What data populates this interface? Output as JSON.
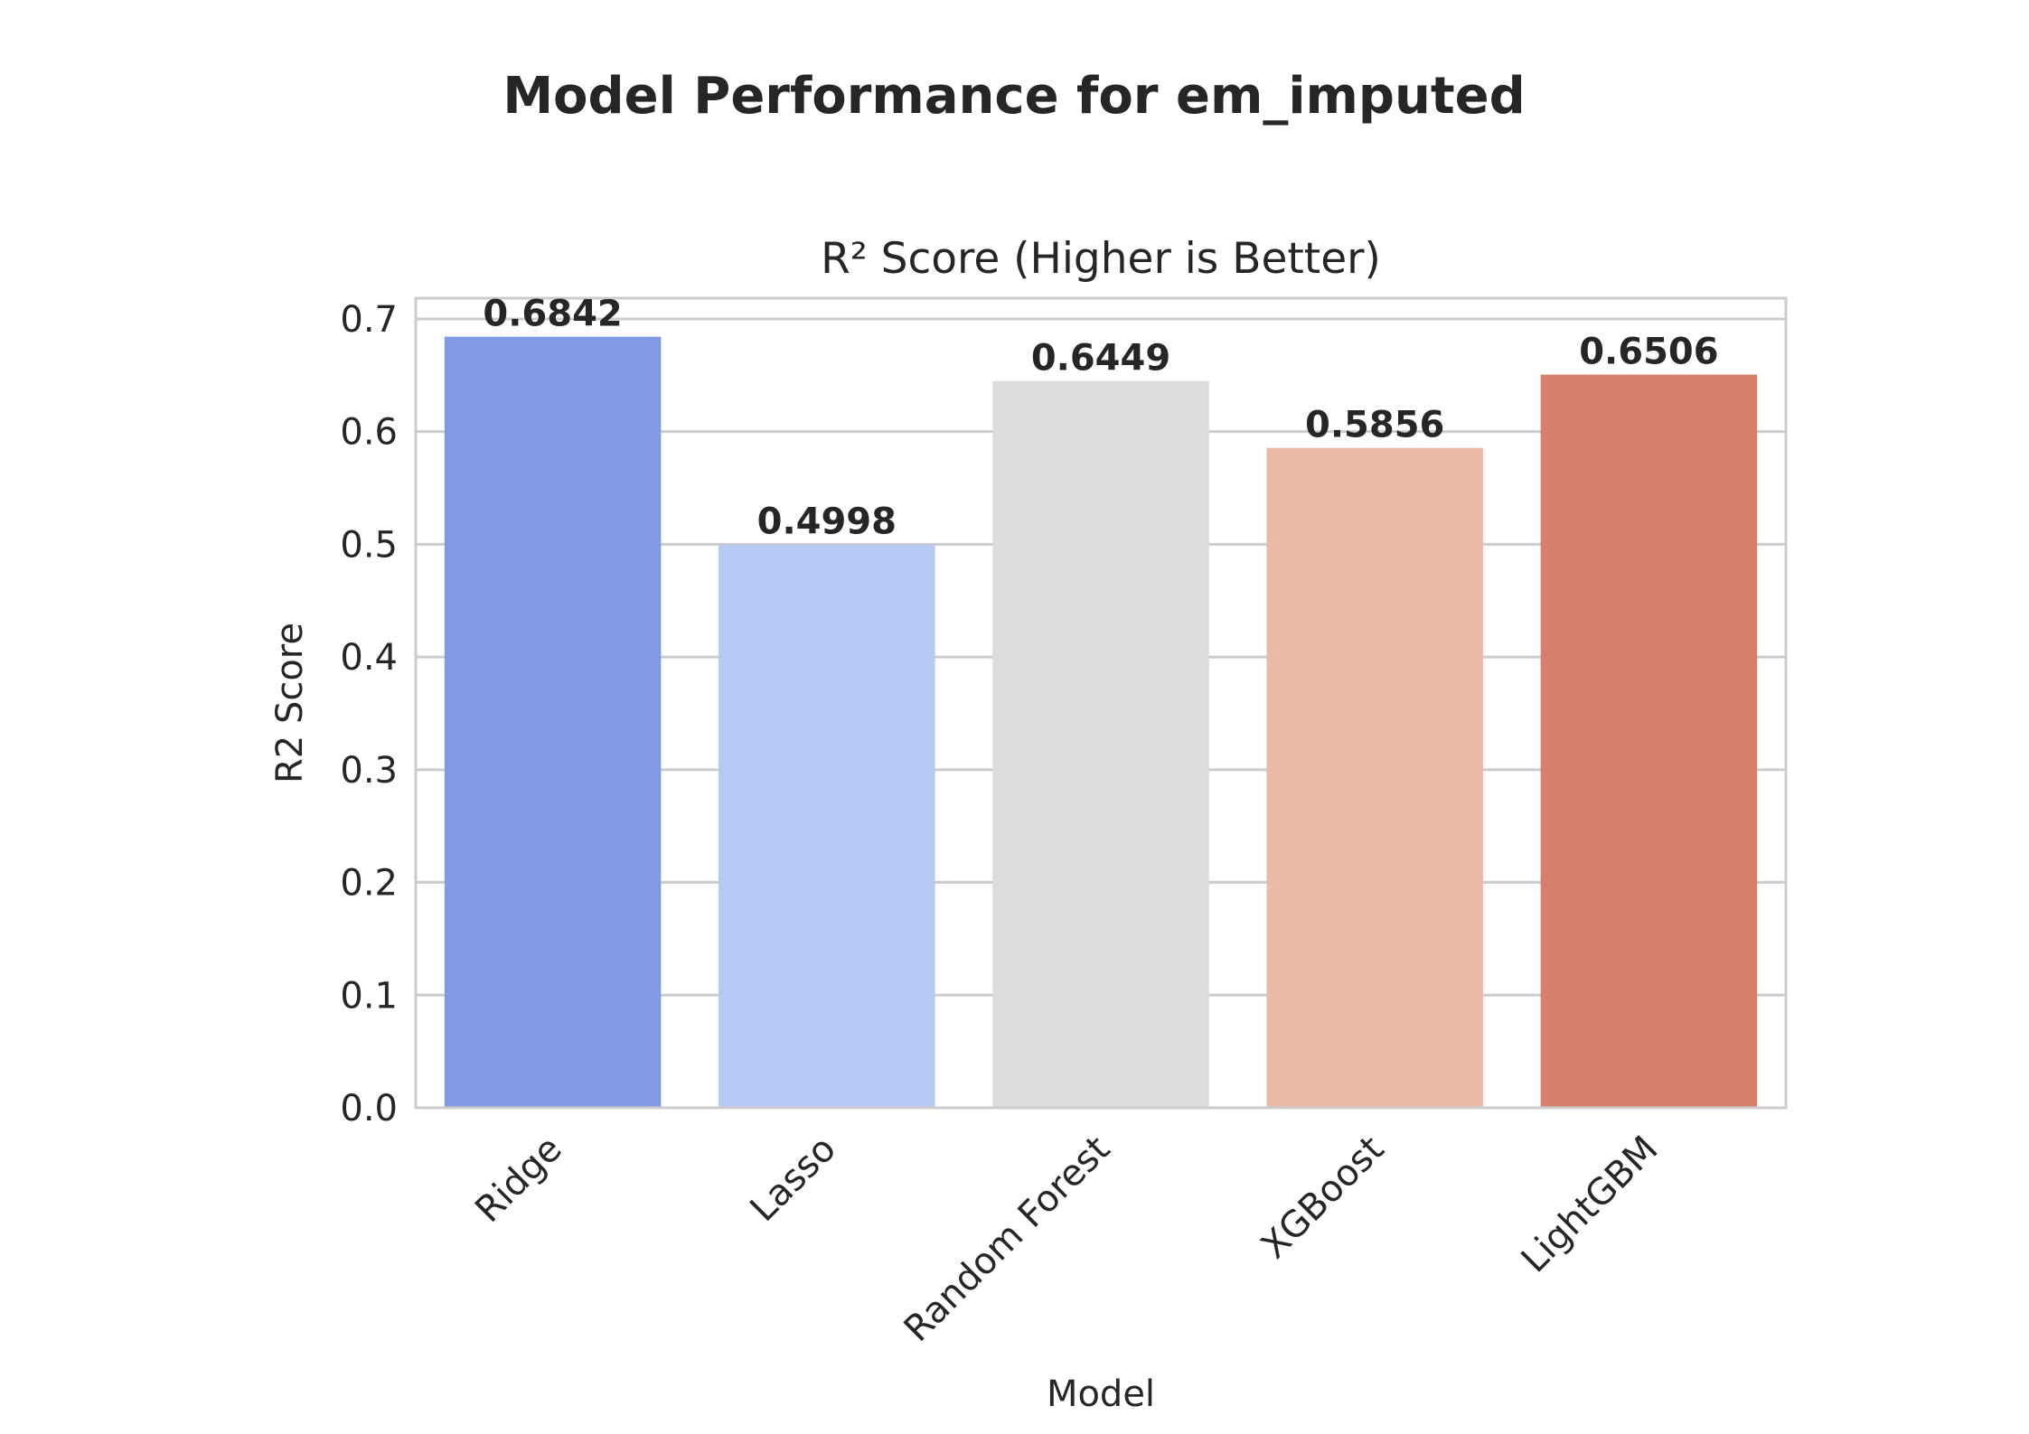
{
  "chart_data": {
    "type": "bar",
    "suptitle": "Model Performance for em_imputed",
    "title": "R² Score (Higher is Better)",
    "xlabel": "Model",
    "ylabel": "R2 Score",
    "categories": [
      "Ridge",
      "Lasso",
      "Random Forest",
      "XGBoost",
      "LightGBM"
    ],
    "values": [
      0.6842,
      0.4998,
      0.6449,
      0.5856,
      0.6506
    ],
    "value_labels": [
      "0.6842",
      "0.4998",
      "0.6449",
      "0.5856",
      "0.6506"
    ],
    "colors": [
      "#819AE3",
      "#B6C9F4",
      "#DCDCDC",
      "#ECBBA6",
      "#D67F6C"
    ],
    "ylim": [
      0,
      0.7184
    ],
    "yticks": [
      0.0,
      0.1,
      0.2,
      0.3,
      0.4,
      0.5,
      0.6,
      0.7
    ],
    "ytick_labels": [
      "0.0",
      "0.1",
      "0.2",
      "0.3",
      "0.4",
      "0.5",
      "0.6",
      "0.7"
    ],
    "grid": true,
    "legend": "none"
  }
}
